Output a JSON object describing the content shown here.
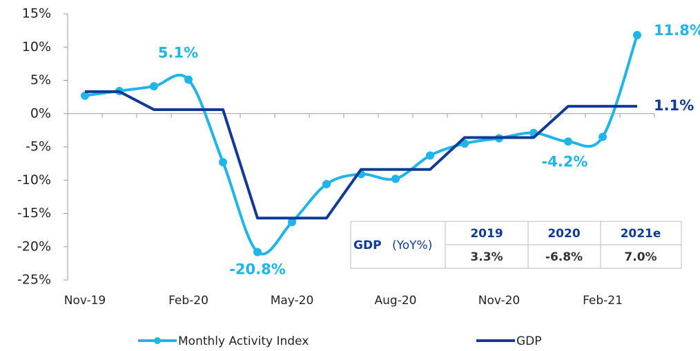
{
  "chart_data": {
    "type": "line",
    "categories": [
      "Nov-19",
      null,
      null,
      "Feb-20",
      null,
      null,
      "May-20",
      null,
      null,
      "Aug-20",
      null,
      null,
      "Nov-20",
      null,
      null,
      "Feb-21",
      null
    ],
    "series": [
      {
        "name": "Monthly Activity Index",
        "color": "#1fb4ea",
        "smooth": true,
        "markers": true,
        "values": [
          2.7,
          3.4,
          4.1,
          5.1,
          -7.3,
          -20.8,
          -16.3,
          -10.6,
          -9.1,
          -9.8,
          -6.3,
          -4.5,
          -3.7,
          -2.9,
          -4.2,
          -3.5,
          11.8
        ],
        "value_labels": [
          null,
          null,
          null,
          "5.1%",
          null,
          "-20.8%",
          null,
          null,
          null,
          null,
          null,
          null,
          null,
          null,
          "-4.2%",
          null,
          "11.8%"
        ]
      },
      {
        "name": "GDP",
        "color": "#0f3a96",
        "smooth": false,
        "markers": false,
        "values": [
          3.3,
          3.3,
          0.6,
          0.6,
          0.6,
          -15.7,
          -15.7,
          -15.7,
          -8.4,
          -8.4,
          -8.4,
          -3.6,
          -3.6,
          -3.6,
          1.1,
          1.1,
          1.1
        ],
        "value_labels": [
          null,
          null,
          null,
          null,
          null,
          null,
          null,
          null,
          null,
          null,
          null,
          null,
          null,
          null,
          null,
          null,
          "1.1%"
        ]
      }
    ],
    "ylim": [
      -25,
      15
    ],
    "yticks": [
      {
        "value": -25,
        "label": "-25%"
      },
      {
        "value": -20,
        "label": "-20%"
      },
      {
        "value": -15,
        "label": "-15%"
      },
      {
        "value": -10,
        "label": "-10%"
      },
      {
        "value": -5,
        "label": "-5%"
      },
      {
        "value": 0,
        "label": "0%"
      },
      {
        "value": 5,
        "label": "5%"
      },
      {
        "value": 10,
        "label": "10%"
      },
      {
        "value": 15,
        "label": "15%"
      }
    ],
    "grid": false,
    "legend": "bottom",
    "table": {
      "title": "GDP",
      "subtitle": "(YoY%)",
      "columns": [
        "2019",
        "2020",
        "2021e"
      ],
      "values": [
        "3.3%",
        "-6.8%",
        "7.0%"
      ]
    }
  }
}
